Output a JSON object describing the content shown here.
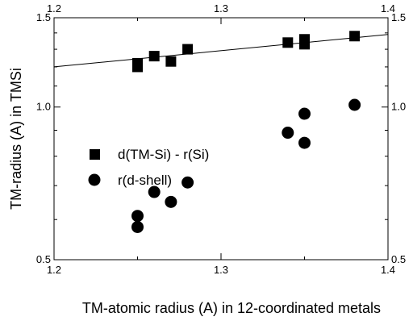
{
  "chart_data": {
    "type": "scatter",
    "xlabel": "TM-atomic radius (A) in 12-coordinated metals",
    "ylabel": "TM-radius (A)  in TMSi",
    "xlim": [
      1.2,
      1.4
    ],
    "ylim": [
      0.5,
      1.5
    ],
    "x_ticks": [
      "1.2",
      "1.3",
      "1.4"
    ],
    "y_ticks": [
      "0.5",
      "1.0",
      "1.5"
    ],
    "top_axis_ticks": [
      "1.2",
      "1.3",
      "1.4"
    ],
    "right_axis_ticks": [
      "0.5",
      "1.0",
      "1.5"
    ],
    "y_scale": "log",
    "grid": false,
    "legend_position": "center-left",
    "series": [
      {
        "name": "d(TM-Si) - r(Si)",
        "marker": "square",
        "color": "#000000",
        "x": [
          1.25,
          1.25,
          1.26,
          1.27,
          1.28,
          1.34,
          1.35,
          1.35,
          1.38
        ],
        "y": [
          1.2,
          1.22,
          1.26,
          1.23,
          1.3,
          1.34,
          1.33,
          1.36,
          1.38
        ]
      },
      {
        "name": "r(d-shell)",
        "marker": "circle",
        "color": "#000000",
        "x": [
          1.25,
          1.25,
          1.26,
          1.27,
          1.28,
          1.34,
          1.35,
          1.35,
          1.38
        ],
        "y": [
          0.58,
          0.61,
          0.68,
          0.65,
          0.71,
          0.89,
          0.97,
          0.85,
          1.01
        ]
      }
    ],
    "fit_line": {
      "x": [
        1.2,
        1.4
      ],
      "y": [
        1.2,
        1.39
      ]
    }
  }
}
